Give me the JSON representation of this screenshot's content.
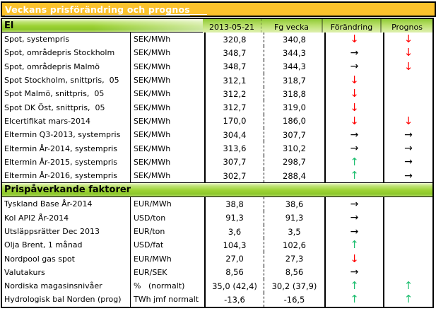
{
  "title": "Veckans prisförändring och prognos",
  "columns": {
    "date": "2013-05-21",
    "prev": "Fg vecka",
    "change": "Förändring",
    "forecast": "Prognos"
  },
  "arrows": {
    "down-red": {
      "glyph": "↓",
      "name": "down-arrow-icon"
    },
    "right-black": {
      "glyph": "→",
      "name": "right-arrow-icon"
    },
    "up-green": {
      "glyph": "↑",
      "name": "up-arrow-icon"
    }
  },
  "colors": {
    "title_bg": "#FBC22C",
    "section_green": "#9CD233",
    "header_green_light": "#D9EDA8",
    "arrow_red": "#FF0000",
    "arrow_green": "#1EBE70",
    "arrow_black": "#000000"
  },
  "sections": [
    {
      "name": "El",
      "rows": [
        {
          "label": "Spot, systempris",
          "unit": "SEK/MWh",
          "value": "320,8",
          "prev": "340,8",
          "change": "down-red",
          "forecast": "down-red"
        },
        {
          "label": "Spot, områdepris Stockholm",
          "unit": "SEK/MWh",
          "value": "348,7",
          "prev": "344,3",
          "change": "right-black",
          "forecast": "down-red"
        },
        {
          "label": "Spot, områdepris Malmö",
          "unit": "SEK/MWh",
          "value": "348,7",
          "prev": "344,3",
          "change": "right-black",
          "forecast": "down-red"
        },
        {
          "label": "Spot Stockholm, snittpris,  05",
          "unit": "SEK/MWh",
          "value": "312,1",
          "prev": "318,7",
          "change": "down-red",
          "forecast": "none"
        },
        {
          "label": "Spot Malmö, snittpris,  05",
          "unit": "SEK/MWh",
          "value": "312,2",
          "prev": "318,8",
          "change": "down-red",
          "forecast": "none"
        },
        {
          "label": "Spot DK Öst, snittpris,  05",
          "unit": "SEK/MWh",
          "value": "312,7",
          "prev": "319,0",
          "change": "down-red",
          "forecast": "none"
        },
        {
          "label": "Elcertifikat mars-2014",
          "unit": "SEK/MWh",
          "value": "170,0",
          "prev": "186,0",
          "change": "down-red",
          "forecast": "down-red"
        },
        {
          "label": "Eltermin Q3-2013, systempris",
          "unit": "SEK/MWh",
          "value": "304,4",
          "prev": "307,7",
          "change": "right-black",
          "forecast": "right-black"
        },
        {
          "label": "Eltermin År-2014, systempris",
          "unit": "SEK/MWh",
          "value": "313,6",
          "prev": "310,2",
          "change": "right-black",
          "forecast": "right-black"
        },
        {
          "label": "Eltermin År-2015, systempris",
          "unit": "SEK/MWh",
          "value": "307,7",
          "prev": "298,7",
          "change": "up-green",
          "forecast": "right-black"
        },
        {
          "label": "Eltermin År-2016, systempris",
          "unit": "SEK/MWh",
          "value": "302,7",
          "prev": "288,4",
          "change": "up-green",
          "forecast": "right-black"
        }
      ]
    },
    {
      "name": "Prispåverkande faktorer",
      "rows": [
        {
          "label": "Tyskland Base År-2014",
          "unit": "EUR/MWh",
          "value": "38,8",
          "prev": "38,6",
          "change": "right-black",
          "forecast": "none"
        },
        {
          "label": "Kol API2 År-2014",
          "unit": "USD/ton",
          "value": "91,3",
          "prev": "91,3",
          "change": "right-black",
          "forecast": "none"
        },
        {
          "label": "Utsläppsrätter Dec 2013",
          "unit": "EUR/ton",
          "value": "3,6",
          "prev": "3,5",
          "change": "right-black",
          "forecast": "none"
        },
        {
          "label": "Olja Brent, 1 månad",
          "unit": "USD/fat",
          "value": "104,3",
          "prev": "102,6",
          "change": "up-green",
          "forecast": "none"
        },
        {
          "label": "Nordpool gas spot",
          "unit": "EUR/MWh",
          "value": "27,0",
          "prev": "27,3",
          "change": "down-red",
          "forecast": "none"
        },
        {
          "label": "Valutakurs",
          "unit": "EUR/SEK",
          "value": "8,56",
          "prev": "8,56",
          "change": "right-black",
          "forecast": "none"
        },
        {
          "label": "Nordiska magasinsnivåer",
          "unit": "%   (normalt)",
          "value": "35,0 (42,4)",
          "prev": "30,2 (37,9)",
          "change": "up-green",
          "forecast": "up-green"
        },
        {
          "label": "Hydrologisk bal Norden (prog)",
          "unit": "TWh jmf normalt",
          "value": "-13,6",
          "prev": "-16,5",
          "change": "up-green",
          "forecast": "up-green"
        }
      ]
    }
  ]
}
